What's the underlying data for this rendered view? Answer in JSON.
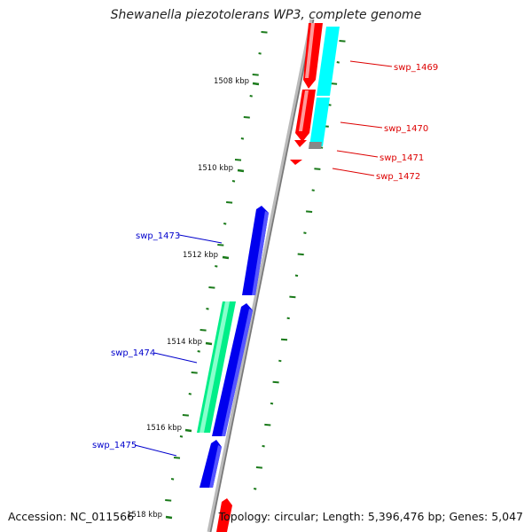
{
  "title": "Shewanella piezotolerans WP3, complete genome",
  "footer": {
    "accession": "Accession: NC_011566",
    "summary": "Topology: circular; Length: 5,396,476 bp; Genes: 5,047"
  },
  "colors": {
    "red": "#ff0000",
    "cyan": "#00ffff",
    "blue": "#0000ee",
    "green": "#00ee88",
    "tick": "#1a7a1a",
    "backbone": "#888888",
    "label_red": "#dd0000",
    "label_blue": "#0000cc"
  },
  "ruler": [
    {
      "label": "1508 kbp"
    },
    {
      "label": "1510 kbp"
    },
    {
      "label": "1512 kbp"
    },
    {
      "label": "1514 kbp"
    },
    {
      "label": "1516 kbp"
    },
    {
      "label": "1518 kbp"
    }
  ],
  "gene_labels": [
    {
      "name": "swp_1469"
    },
    {
      "name": "swp_1470"
    },
    {
      "name": "swp_1471"
    },
    {
      "name": "swp_1472"
    },
    {
      "name": "swp_1473"
    },
    {
      "name": "swp_1474"
    },
    {
      "name": "swp_1475"
    }
  ]
}
